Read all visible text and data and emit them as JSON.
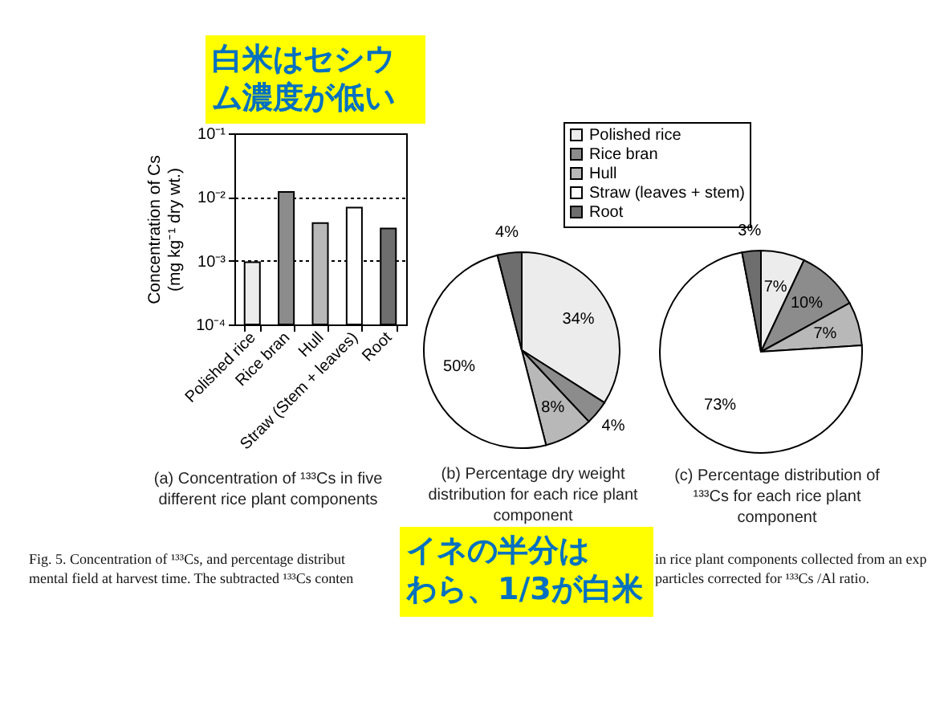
{
  "chart_data": [
    {
      "type": "bar",
      "title": "(a) Concentration of ¹³³Cs in five different rice plant components",
      "ylabel": "Concentration of Cs (mg kg⁻¹ dry wt.)",
      "categories": [
        "Polished rice",
        "Rice bran",
        "Hull",
        "Straw (Stem + leaves)",
        "Root"
      ],
      "values": [
        0.00095,
        0.012,
        0.0039,
        0.0068,
        0.0032
      ],
      "colors": [
        "#ececec",
        "#8c8c8c",
        "#b8b8b8",
        "#ffffff",
        "#6e6e6e"
      ],
      "ylim": [
        0.0001,
        0.1
      ],
      "yticks": [
        {
          "value": 0.0001,
          "label": "10⁻⁴"
        },
        {
          "value": 0.001,
          "label": "10⁻³"
        },
        {
          "value": 0.01,
          "label": "10⁻²"
        },
        {
          "value": 0.1,
          "label": "10⁻¹"
        }
      ],
      "log": true,
      "grid": "y",
      "annotations": [
        "白米はセシウム濃度が低い"
      ]
    },
    {
      "type": "pie",
      "title": "(b) Percentage dry weight distribution for each rice plant component",
      "categories": [
        "Polished rice",
        "Rice bran",
        "Hull",
        "Straw (leaves + stem)",
        "Root"
      ],
      "values": [
        34,
        4,
        8,
        50,
        4
      ],
      "colors": [
        "#ececec",
        "#8c8c8c",
        "#b8b8b8",
        "#ffffff",
        "#6e6e6e"
      ],
      "value_labels": [
        "34%",
        "4%",
        "8%",
        "50%",
        "4%"
      ],
      "legend": "top right",
      "annotations": [
        "イネの半分はわら、1/3が白米",
        "Fig. 5. Concentration of ¹³³Cs, and percentage distribut",
        "in rice plant components collected from an exp",
        "mental field at harvest time. The subtracted ¹³³Cs conten",
        "particles corrected for ¹³³Cs /Al ratio."
      ]
    },
    {
      "type": "pie",
      "title": "(c) Percentage distribution of ¹³³Cs for each rice plant component",
      "categories": [
        null,
        null,
        null,
        null,
        null
      ],
      "values": [
        7,
        10,
        7,
        73,
        3
      ],
      "colors": [
        "#ececec",
        "#8c8c8c",
        "#b8b8b8",
        "#ffffff",
        "#6e6e6e"
      ],
      "value_labels": [
        "7%",
        "10%",
        "7%",
        "73%",
        "3%"
      ]
    }
  ]
}
